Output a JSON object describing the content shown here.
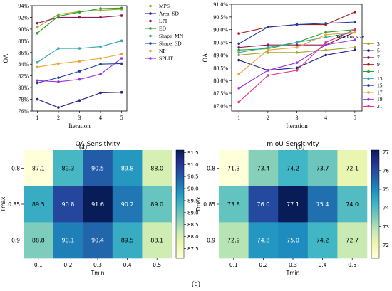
{
  "chart_data": [
    {
      "type": "line",
      "panel_label": "(a)",
      "xlabel": "Iteration",
      "ylabel": "OA",
      "x": [
        1,
        2,
        3,
        4,
        5
      ],
      "ylim": [
        76,
        94
      ],
      "yticks": [
        76,
        78,
        80,
        82,
        84,
        86,
        88,
        90,
        92,
        94
      ],
      "ytick_suffix": "%",
      "grid": false,
      "legend_position": "right",
      "series": [
        {
          "name": "MPS",
          "color": "#a5a52a",
          "values": [
            90.3,
            92.5,
            93.0,
            93.2,
            93.4
          ]
        },
        {
          "name": "Area_SD",
          "color": "#20208a",
          "values": [
            78.0,
            76.6,
            77.8,
            79.1,
            79.2
          ]
        },
        {
          "name": "LPI",
          "color": "#8a1c5a",
          "values": [
            91.0,
            92.0,
            92.0,
            92.0,
            92.3
          ]
        },
        {
          "name": "ED",
          "color": "#2ca02c",
          "values": [
            89.3,
            92.2,
            92.9,
            93.5,
            93.6
          ]
        },
        {
          "name": "Shape_MN",
          "color": "#33a6a6",
          "values": [
            84.3,
            86.7,
            86.7,
            87.0,
            88.0
          ]
        },
        {
          "name": "Shape_SD",
          "color": "#1f3d9e",
          "values": [
            80.8,
            81.7,
            82.8,
            84.0,
            84.1
          ]
        },
        {
          "name": "NP",
          "color": "#f0a030",
          "values": [
            83.5,
            84.1,
            84.5,
            85.0,
            85.7
          ]
        },
        {
          "name": "SPLIT",
          "color": "#9b30e0",
          "values": [
            81.2,
            81.0,
            81.4,
            82.3,
            85.0
          ]
        }
      ]
    },
    {
      "type": "line",
      "panel_label": "(b)",
      "xlabel": "Iteration",
      "ylabel": "OA",
      "x": [
        1,
        2,
        3,
        4,
        5
      ],
      "ylim": [
        86.8,
        91.0
      ],
      "yticks": [
        87.0,
        87.5,
        88.0,
        88.5,
        89.0,
        89.5,
        90.0,
        90.5,
        91.0
      ],
      "ytick_suffix": "%",
      "grid": false,
      "legend_title": "Window size",
      "legend_position": "right",
      "series": [
        {
          "name": "3",
          "color": "#a5a52a",
          "values": [
            89.0,
            89.1,
            89.1,
            89.2,
            89.3
          ]
        },
        {
          "name": "5",
          "color": "#20208a",
          "values": [
            88.8,
            88.4,
            88.5,
            89.0,
            89.2
          ]
        },
        {
          "name": "7",
          "color": "#8a1c5a",
          "values": [
            89.3,
            89.4,
            89.4,
            89.4,
            89.9
          ]
        },
        {
          "name": "9",
          "color": "#a01a1a",
          "values": [
            89.85,
            90.1,
            90.2,
            90.2,
            90.7
          ]
        },
        {
          "name": "11",
          "color": "#2ca02c",
          "values": [
            89.2,
            89.25,
            89.5,
            89.9,
            90.0
          ]
        },
        {
          "name": "13",
          "color": "#33a6a6",
          "values": [
            89.1,
            89.3,
            89.5,
            89.7,
            89.9
          ]
        },
        {
          "name": "15",
          "color": "#1f3d9e",
          "values": [
            89.45,
            90.1,
            90.2,
            90.25,
            90.3
          ]
        },
        {
          "name": "17",
          "color": "#f0a030",
          "values": [
            88.25,
            89.2,
            89.3,
            89.8,
            89.9
          ]
        },
        {
          "name": "19",
          "color": "#9b30e0",
          "values": [
            87.7,
            88.4,
            88.7,
            89.4,
            89.6
          ]
        },
        {
          "name": "21",
          "color": "#e0308a",
          "values": [
            87.15,
            88.2,
            88.4,
            89.5,
            90.0
          ]
        }
      ]
    },
    {
      "type": "heatmap",
      "title": "OA Sensitivity",
      "xlabel": "Tmin",
      "ylabel": "Tmax",
      "x_categories": [
        "0.1",
        "0.2",
        "0.3",
        "0.4",
        "0.5"
      ],
      "y_categories": [
        "0.8",
        "0.85",
        "0.9"
      ],
      "values": [
        [
          87.1,
          89.3,
          90.5,
          89.8,
          88.0
        ],
        [
          89.5,
          90.8,
          91.6,
          90.2,
          89.0
        ],
        [
          88.8,
          90.1,
          90.4,
          89.5,
          88.1
        ]
      ],
      "colorbar_range": [
        87.1,
        91.6
      ],
      "colorbar_ticks": [
        "87.5",
        "88.0",
        "88.5",
        "89.0",
        "89.5",
        "90.0",
        "90.5",
        "91.0",
        "91.5"
      ],
      "colormap": "YlGnBu"
    },
    {
      "type": "heatmap",
      "title": "mIoU Sensitivity",
      "xlabel": "Tmin",
      "ylabel": "Tmax",
      "x_categories": [
        "0.1",
        "0.2",
        "0.3",
        "0.4",
        "0.5"
      ],
      "y_categories": [
        "0.8",
        "0.85",
        "0.9"
      ],
      "values": [
        [
          71.3,
          73.4,
          74.2,
          73.7,
          72.1
        ],
        [
          73.8,
          76.0,
          77.1,
          75.4,
          74.0
        ],
        [
          72.9,
          74.8,
          75.0,
          74.2,
          72.7
        ]
      ],
      "colorbar_range": [
        71.3,
        77.1
      ],
      "colorbar_ticks": [
        "72",
        "73",
        "74",
        "75",
        "76",
        "77"
      ],
      "colormap": "YlGnBu"
    }
  ],
  "caption": "(c)"
}
